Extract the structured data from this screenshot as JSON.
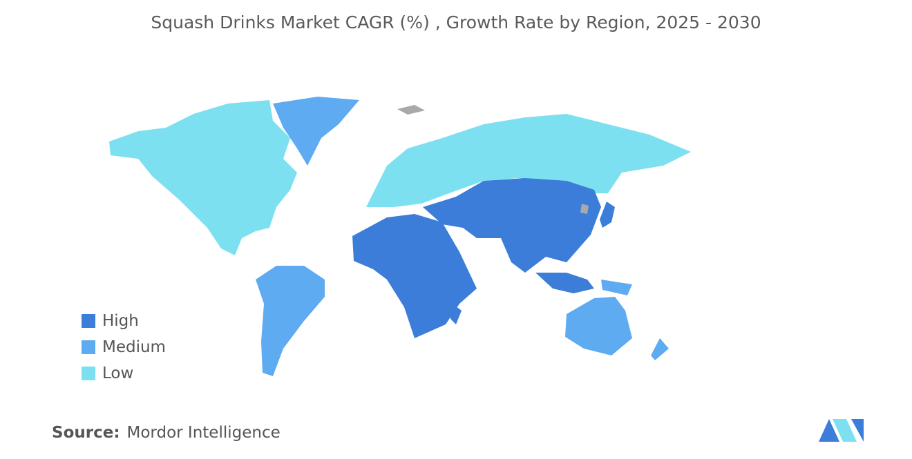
{
  "header": {
    "title": "Squash Drinks Market CAGR (%) , Growth Rate by Region, 2025 - 2030"
  },
  "legend": {
    "items": [
      {
        "label": "High",
        "color": "#3b7dd8"
      },
      {
        "label": "Medium",
        "color": "#5eabf2"
      },
      {
        "label": "Low",
        "color": "#7de0f0"
      }
    ]
  },
  "source": {
    "label": "Source:",
    "text": "Mordor Intelligence"
  }
}
